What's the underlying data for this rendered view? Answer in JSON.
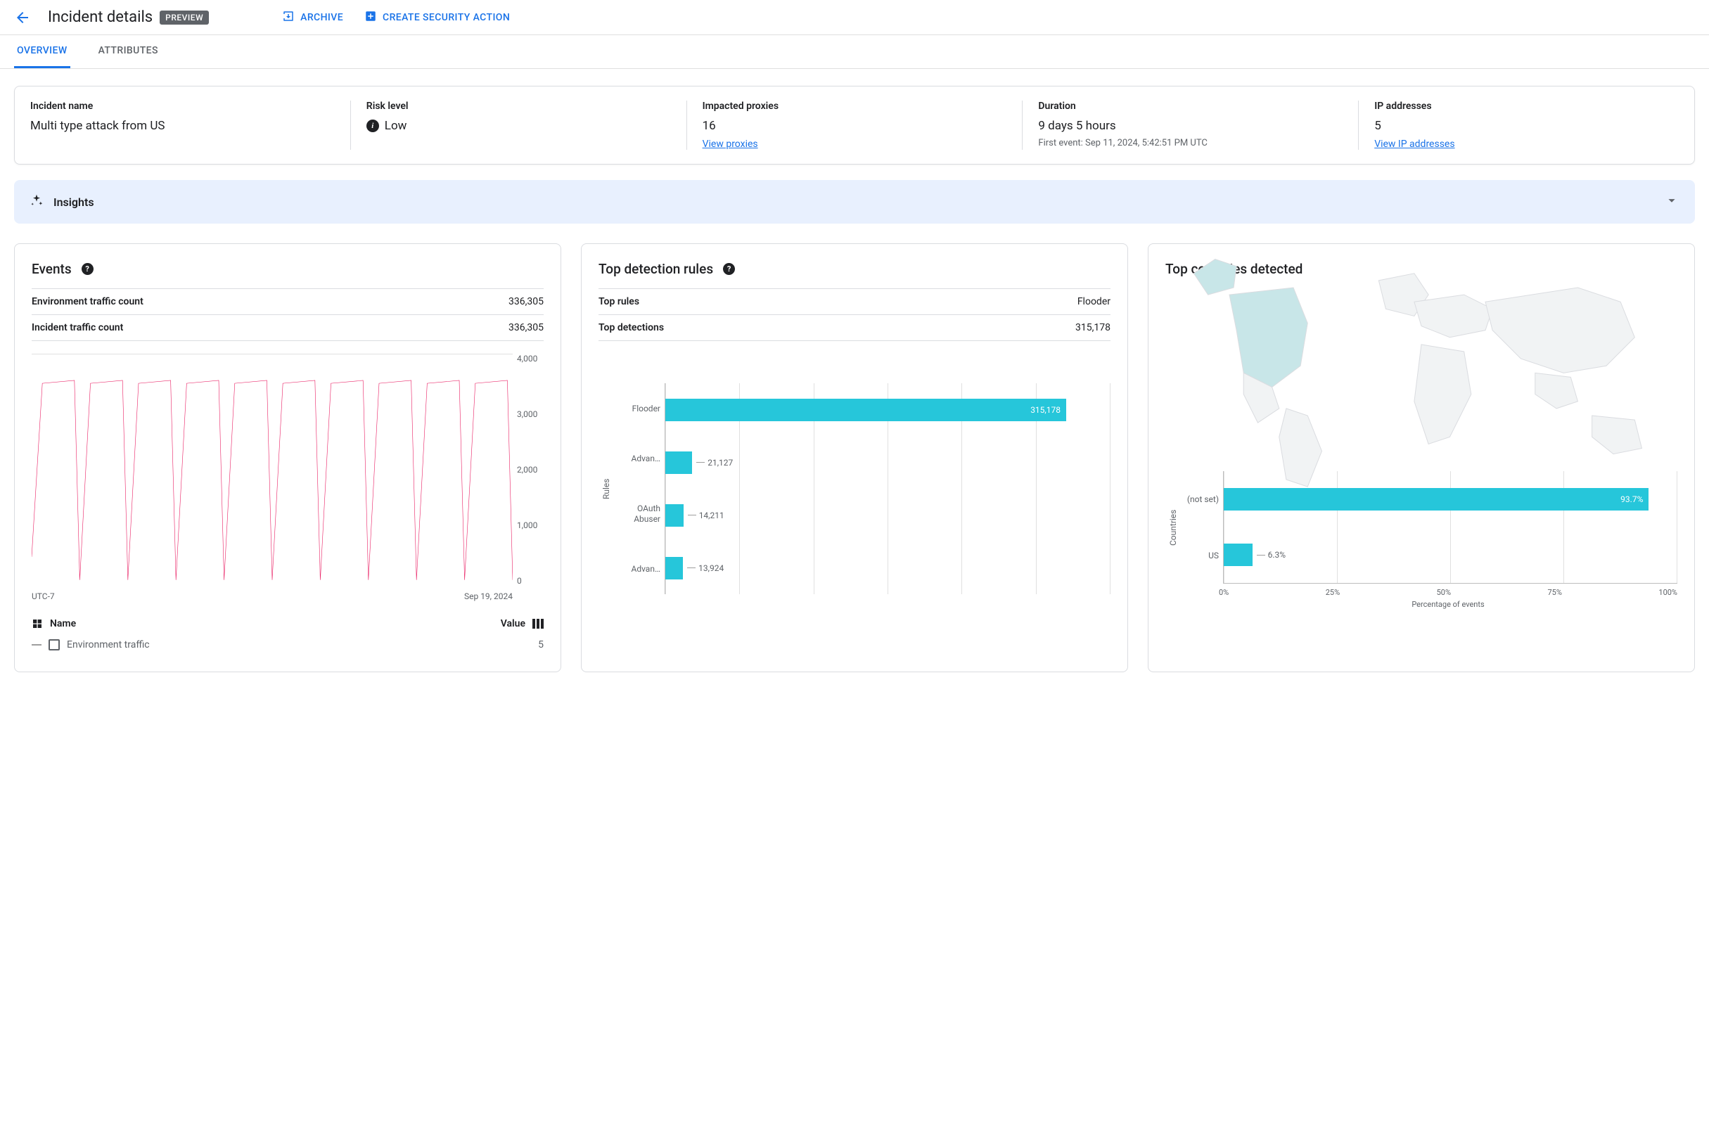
{
  "header": {
    "title": "Incident details",
    "badge": "PREVIEW",
    "archive_label": "ARCHIVE",
    "create_action_label": "CREATE SECURITY ACTION"
  },
  "tabs": {
    "overview": "OVERVIEW",
    "attributes": "ATTRIBUTES"
  },
  "summary": {
    "incident_name_label": "Incident name",
    "incident_name_value": "Multi type attack from US",
    "risk_level_label": "Risk level",
    "risk_level_value": "Low",
    "impacted_proxies_label": "Impacted proxies",
    "impacted_proxies_value": "16",
    "view_proxies_link": "View proxies",
    "duration_label": "Duration",
    "duration_value": "9 days 5 hours",
    "duration_sub": "First event: Sep 11, 2024, 5:42:51 PM UTC",
    "ip_addresses_label": "IP addresses",
    "ip_addresses_value": "5",
    "view_ip_link": "View IP addresses"
  },
  "insights": {
    "title": "Insights"
  },
  "events_panel": {
    "title": "Events",
    "env_traffic_label": "Environment traffic count",
    "env_traffic_value": "336,305",
    "incident_traffic_label": "Incident traffic count",
    "incident_traffic_value": "336,305",
    "chart": {
      "type": "line",
      "line_color": "#e91e63",
      "background_color": "#ffffff",
      "grid_color": "#e0e0e0",
      "ylim": [
        0,
        4000
      ],
      "yticks": [
        "4,000",
        "3,000",
        "2,000",
        "1,000",
        "0"
      ],
      "ytick_step": 1000,
      "xaxis_left": "UTC-7",
      "xaxis_right": "Sep 19, 2024",
      "stroke_width": 1.5,
      "series": [
        {
          "x": 0,
          "y": 500
        },
        {
          "x": 2,
          "y": 3500
        },
        {
          "x": 8,
          "y": 3550
        },
        {
          "x": 9,
          "y": 100
        },
        {
          "x": 11,
          "y": 3500
        },
        {
          "x": 17,
          "y": 3550
        },
        {
          "x": 18,
          "y": 100
        },
        {
          "x": 20,
          "y": 3500
        },
        {
          "x": 26,
          "y": 3550
        },
        {
          "x": 27,
          "y": 100
        },
        {
          "x": 29,
          "y": 3500
        },
        {
          "x": 35,
          "y": 3550
        },
        {
          "x": 36,
          "y": 100
        },
        {
          "x": 38,
          "y": 3500
        },
        {
          "x": 44,
          "y": 3550
        },
        {
          "x": 45,
          "y": 100
        },
        {
          "x": 47,
          "y": 3500
        },
        {
          "x": 53,
          "y": 3550
        },
        {
          "x": 54,
          "y": 100
        },
        {
          "x": 56,
          "y": 3500
        },
        {
          "x": 62,
          "y": 3550
        },
        {
          "x": 63,
          "y": 100
        },
        {
          "x": 65,
          "y": 3500
        },
        {
          "x": 71,
          "y": 3550
        },
        {
          "x": 72,
          "y": 100
        },
        {
          "x": 74,
          "y": 3500
        },
        {
          "x": 80,
          "y": 3550
        },
        {
          "x": 81,
          "y": 100
        },
        {
          "x": 83,
          "y": 3500
        },
        {
          "x": 89,
          "y": 3550
        },
        {
          "x": 90,
          "y": 100
        }
      ]
    },
    "legend": {
      "name_header": "Name",
      "value_header": "Value",
      "row1_name": "Environment traffic",
      "row1_value": "5"
    }
  },
  "rules_panel": {
    "title": "Top detection rules",
    "top_rules_label": "Top rules",
    "top_rules_value": "Flooder",
    "top_detections_label": "Top detections",
    "top_detections_value": "315,178",
    "chart": {
      "type": "bar",
      "orientation": "horizontal",
      "bar_color": "#26c6da",
      "grid_color": "#e0e0e0",
      "axis_color": "#bdbdbd",
      "label_fontsize": 12,
      "value_fontsize": 12,
      "y_axis_title": "Rules",
      "xlim": [
        0,
        350000
      ],
      "grid_count": 6,
      "bars": [
        {
          "label": "Flooder",
          "value": 315178,
          "display": "315,178",
          "value_inside": true
        },
        {
          "label": "Advan…",
          "value": 21127,
          "display": "21,127",
          "value_inside": false
        },
        {
          "label": "OAuth Abuser",
          "value": 14211,
          "display": "14,211",
          "value_inside": false
        },
        {
          "label": "Advan…",
          "value": 13924,
          "display": "13,924",
          "value_inside": false
        }
      ]
    }
  },
  "countries_panel": {
    "title": "Top countries detected",
    "map": {
      "land_color": "#f1f3f4",
      "stroke_color": "#dadce0",
      "highlight_color": "#c8e6e8",
      "highlighted": "US"
    },
    "chart": {
      "type": "bar",
      "orientation": "horizontal",
      "bar_color": "#26c6da",
      "grid_color": "#e0e0e0",
      "axis_color": "#bdbdbd",
      "y_axis_title": "Countries",
      "x_axis_title": "Percentage of events",
      "xlim": [
        0,
        100
      ],
      "xticks": [
        "0%",
        "25%",
        "50%",
        "75%",
        "100%"
      ],
      "bars": [
        {
          "label": "(not set)",
          "value": 93.7,
          "display": "93.7%",
          "value_inside": true
        },
        {
          "label": "US",
          "value": 6.3,
          "display": "6.3%",
          "value_inside": false
        }
      ]
    }
  },
  "colors": {
    "primary": "#1a73e8",
    "text": "#202124",
    "text_secondary": "#5f6368",
    "border": "#dadce0",
    "insights_bg": "#e8f0fe",
    "badge_bg": "#5f6368",
    "chart_line": "#e91e63",
    "chart_bar": "#26c6da"
  }
}
